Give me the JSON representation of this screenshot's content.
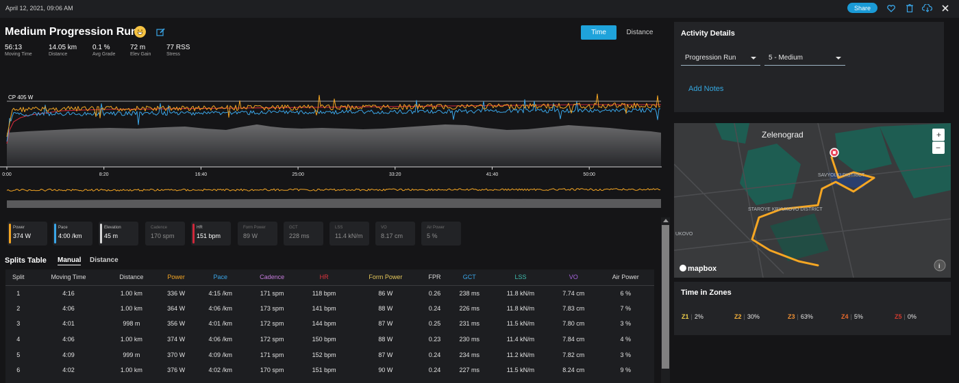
{
  "header": {
    "date": "April 12, 2021, 09:06 AM",
    "share_label": "Share",
    "icons": [
      "heart-icon",
      "trash-icon",
      "cloud-download-icon",
      "close-icon"
    ]
  },
  "activity": {
    "title": "Medium Progression Run",
    "emoji_icon": "grin-emoji-icon",
    "edit_icon": "edit-icon",
    "toggle": {
      "time": "Time",
      "distance": "Distance",
      "selected": "Time"
    },
    "stats": [
      {
        "value": "56:13",
        "label": "Moving Time"
      },
      {
        "value": "14.05 km",
        "label": "Distance"
      },
      {
        "value": "0.1 %",
        "label": "Avg Grade"
      },
      {
        "value": "72 m",
        "label": "Elev Gain"
      },
      {
        "value": "77 RSS",
        "label": "Stress"
      }
    ]
  },
  "chart_data": {
    "type": "line",
    "cp_label": "CP 405 W",
    "x_ticks": [
      "0:00",
      "8:20",
      "16:40",
      "25:00",
      "33:20",
      "41:40",
      "50:00"
    ],
    "series": [
      {
        "name": "Power",
        "color": "#f5a623"
      },
      {
        "name": "Pace",
        "color": "#3aa6e8"
      },
      {
        "name": "Elevation",
        "color": "#d0d0d0"
      },
      {
        "name": "HR",
        "color": "#d0283a"
      }
    ],
    "grid": false
  },
  "metrics": [
    {
      "label": "Power",
      "value": "374 W",
      "color": "#f5a623",
      "active": true
    },
    {
      "label": "Pace",
      "value": "4:00 /km",
      "color": "#3aa6e8",
      "active": true
    },
    {
      "label": "Elevation",
      "value": "45 m",
      "color": "#d8d8d8",
      "active": true
    },
    {
      "label": "Cadence",
      "value": "170 spm",
      "color": "",
      "active": false
    },
    {
      "label": "HR",
      "value": "151 bpm",
      "color": "#d0283a",
      "active": true
    },
    {
      "label": "Form Power",
      "value": "89 W",
      "color": "",
      "active": false
    },
    {
      "label": "GCT",
      "value": "228 ms",
      "color": "",
      "active": false
    },
    {
      "label": "LSS",
      "value": "11.4 kN/m",
      "color": "",
      "active": false
    },
    {
      "label": "VO",
      "value": "8.17 cm",
      "color": "",
      "active": false
    },
    {
      "label": "Air Power",
      "value": "5 %",
      "color": "",
      "active": false
    }
  ],
  "splits": {
    "title": "Splits Table",
    "tabs": [
      "Manual",
      "Distance"
    ],
    "selected_tab": "Manual",
    "columns": [
      {
        "label": "Split",
        "color": "#dcdcdc"
      },
      {
        "label": "Moving Time",
        "color": "#dcdcdc"
      },
      {
        "label": "Distance",
        "color": "#dcdcdc"
      },
      {
        "label": "Power",
        "color": "#f5a623"
      },
      {
        "label": "Pace",
        "color": "#3aa6e8"
      },
      {
        "label": "Cadence",
        "color": "#c77dde"
      },
      {
        "label": "HR",
        "color": "#e2343f"
      },
      {
        "label": "Form Power",
        "color": "#e6c85a"
      },
      {
        "label": "FPR",
        "color": "#dcdcdc"
      },
      {
        "label": "GCT",
        "color": "#3aa6e8"
      },
      {
        "label": "LSS",
        "color": "#3fbfb0"
      },
      {
        "label": "VO",
        "color": "#a864e0"
      },
      {
        "label": "Air Power",
        "color": "#dcdcdc"
      }
    ],
    "rows": [
      [
        "1",
        "4:16",
        "1.00 km",
        "336 W",
        "4:15 /km",
        "171 spm",
        "118 bpm",
        "86 W",
        "0.26",
        "238 ms",
        "11.8 kN/m",
        "7.74 cm",
        "6 %"
      ],
      [
        "2",
        "4:06",
        "1.00 km",
        "364 W",
        "4:06 /km",
        "173 spm",
        "141 bpm",
        "88 W",
        "0.24",
        "226 ms",
        "11.8 kN/m",
        "7.83 cm",
        "7 %"
      ],
      [
        "3",
        "4:01",
        "998 m",
        "356 W",
        "4:01 /km",
        "172 spm",
        "144 bpm",
        "87 W",
        "0.25",
        "231 ms",
        "11.5 kN/m",
        "7.80 cm",
        "3 %"
      ],
      [
        "4",
        "4:06",
        "1.00 km",
        "374 W",
        "4:06 /km",
        "172 spm",
        "150 bpm",
        "88 W",
        "0.23",
        "230 ms",
        "11.4 kN/m",
        "7.84 cm",
        "4 %"
      ],
      [
        "5",
        "4:09",
        "999 m",
        "370 W",
        "4:09 /km",
        "171 spm",
        "152 bpm",
        "87 W",
        "0.24",
        "234 ms",
        "11.2 kN/m",
        "7.82 cm",
        "3 %"
      ],
      [
        "6",
        "4:02",
        "1.00 km",
        "376 W",
        "4:02 /km",
        "170 spm",
        "151 bpm",
        "90 W",
        "0.24",
        "227 ms",
        "11.5 kN/m",
        "8.24 cm",
        "9 %"
      ]
    ]
  },
  "activity_details": {
    "title": "Activity Details",
    "workout_type": "Progression Run",
    "difficulty": "5 - Medium",
    "add_notes": "Add Notes"
  },
  "map": {
    "city_label": "Zelenograd",
    "district_1": "SAVYOLKI DISTRICT",
    "district_2": "STAROYE KRYUKOVO DISTRICT",
    "edge_label": "UKOVO",
    "attribution": "mapbox",
    "zoom_in": "+",
    "zoom_out": "−",
    "route_color": "#f5a623"
  },
  "zones": {
    "title": "Time in Zones",
    "items": [
      {
        "label": "Z1",
        "value": "2%",
        "color": "#f2d24a"
      },
      {
        "label": "Z2",
        "value": "30%",
        "color": "#f5b13a"
      },
      {
        "label": "Z3",
        "value": "63%",
        "color": "#f39234"
      },
      {
        "label": "Z4",
        "value": "5%",
        "color": "#ea6a2c"
      },
      {
        "label": "Z5",
        "value": "0%",
        "color": "#d23a2e"
      }
    ]
  }
}
